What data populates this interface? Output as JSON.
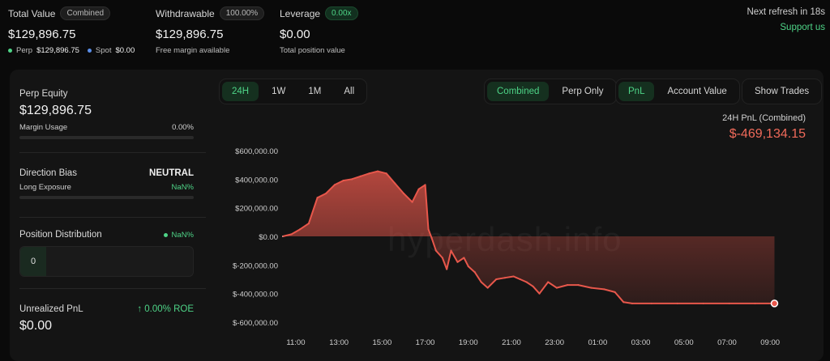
{
  "stats": {
    "total_value": {
      "label": "Total Value",
      "badge": "Combined",
      "value": "$129,896.75",
      "perp_label": "Perp",
      "perp_value": "$129,896.75",
      "spot_label": "Spot",
      "spot_value": "$0.00"
    },
    "withdrawable": {
      "label": "Withdrawable",
      "badge": "100.00%",
      "value": "$129,896.75",
      "sub": "Free margin available"
    },
    "leverage": {
      "label": "Leverage",
      "badge": "0.00x",
      "value": "$0.00",
      "sub": "Total position value"
    }
  },
  "refresh_text": "Next refresh in 18s",
  "support_link": "Support us",
  "left": {
    "perp_equity_label": "Perp Equity",
    "perp_equity_value": "$129,896.75",
    "margin_usage_label": "Margin Usage",
    "margin_usage_value": "0.00%",
    "direction_bias_label": "Direction Bias",
    "direction_bias_value": "NEUTRAL",
    "long_exposure_label": "Long Exposure",
    "long_exposure_value": "NaN%",
    "position_distribution_label": "Position Distribution",
    "position_distribution_value": "NaN%",
    "distribution_count": "0",
    "unrealized_pnl_label": "Unrealized PnL",
    "roe_text": "↑ 0.00% ROE",
    "unrealized_pnl_value": "$0.00"
  },
  "range_tabs": [
    "24H",
    "1W",
    "1M",
    "All"
  ],
  "range_active": "24H",
  "view_tabs": [
    "Combined",
    "Perp Only"
  ],
  "view_active": "Combined",
  "metric_tabs": [
    "PnL",
    "Account Value"
  ],
  "metric_active": "PnL",
  "show_trades": "Show Trades",
  "pnl_caption": "24H PnL (Combined)",
  "pnl_value": "$-469,134.15",
  "watermark": "hyperdash.info",
  "colors": {
    "accent_green": "#4ed487",
    "loss_red": "#f06a5a",
    "line_red": "#e8574b",
    "background": "#0a0a0a",
    "panel": "#141414"
  },
  "chart_data": {
    "type": "area",
    "title": "24H PnL (Combined)",
    "ylim": [
      -600000,
      600000
    ],
    "yticks": [
      600000,
      400000,
      200000,
      0,
      -200000,
      -400000,
      -600000
    ],
    "ytick_labels": [
      "$600,000.00",
      "$400,000.00",
      "$200,000.00",
      "$0.00",
      "$-200,000.00",
      "$-400,000.00",
      "$-600,000.00"
    ],
    "xtick_labels": [
      "11:00",
      "13:00",
      "15:00",
      "17:00",
      "19:00",
      "21:00",
      "23:00",
      "01:00",
      "03:00",
      "05:00",
      "07:00",
      "09:00"
    ],
    "series": [
      {
        "x": [
          10.4,
          10.8,
          11.2,
          11.6,
          12.0,
          12.4,
          12.8,
          13.2,
          13.6,
          14.0,
          14.4,
          14.8,
          15.2,
          15.6,
          16.0,
          16.4,
          16.7,
          17.0,
          17.15,
          17.3,
          17.5,
          17.8,
          18.0,
          18.2,
          18.5,
          18.8,
          19.0,
          19.3,
          19.6,
          19.9,
          20.3,
          20.7,
          21.1,
          21.4,
          21.7,
          22.0,
          22.3,
          22.7,
          23.1,
          23.6,
          24.1,
          24.7,
          25.3,
          25.8,
          26.2,
          26.6,
          27.5,
          28.7,
          29.9,
          31.1,
          32.3,
          33.2
        ],
        "y": [
          0,
          15000,
          50000,
          90000,
          270000,
          300000,
          360000,
          390000,
          400000,
          420000,
          440000,
          455000,
          440000,
          370000,
          300000,
          240000,
          330000,
          360000,
          50000,
          -10000,
          -100000,
          -150000,
          -230000,
          -100000,
          -180000,
          -150000,
          -210000,
          -250000,
          -320000,
          -360000,
          -300000,
          -290000,
          -280000,
          -300000,
          -320000,
          -350000,
          -400000,
          -320000,
          -360000,
          -340000,
          -340000,
          -360000,
          -370000,
          -390000,
          -460000,
          -469134,
          -469134,
          -469134,
          -469134,
          -469134,
          -469134,
          -469134
        ]
      }
    ]
  }
}
